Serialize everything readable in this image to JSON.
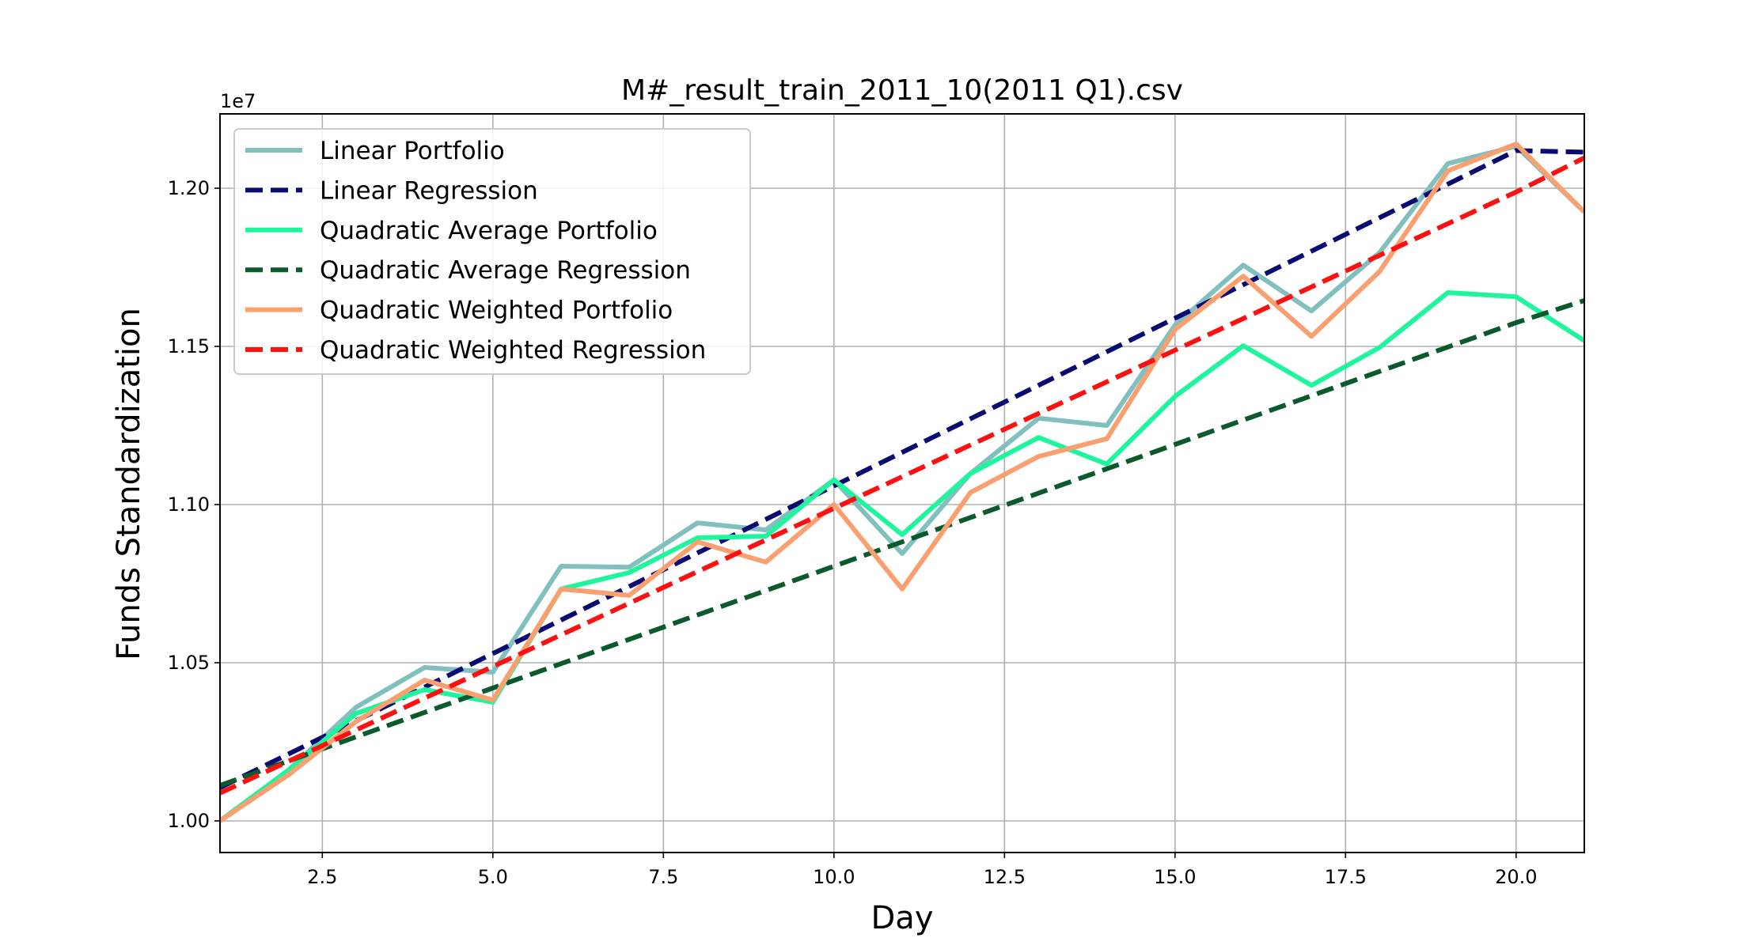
{
  "chart_data": {
    "type": "line",
    "title": "M#_result_train_2011_10(2011 Q1).csv",
    "xlabel": "Day",
    "ylabel": "Funds Standardization",
    "y_offset_label": "1e7",
    "xlim": [
      1,
      21
    ],
    "ylim": [
      0.99,
      1.2235
    ],
    "x_ticks": [
      2.5,
      5.0,
      7.5,
      10.0,
      12.5,
      15.0,
      17.5,
      20.0
    ],
    "x_tick_labels": [
      "2.5",
      "5.0",
      "7.5",
      "10.0",
      "12.5",
      "15.0",
      "17.5",
      "20.0"
    ],
    "y_ticks": [
      1.0,
      1.05,
      1.1,
      1.15,
      1.2
    ],
    "y_tick_labels": [
      "1.00",
      "1.05",
      "1.10",
      "1.15",
      "1.20"
    ],
    "grid": true,
    "legend_position": "upper-left",
    "x": [
      1,
      2,
      3,
      4,
      5,
      6,
      7,
      8,
      9,
      10,
      11,
      12,
      13,
      14,
      15,
      16,
      17,
      18,
      19,
      20,
      21
    ],
    "series": [
      {
        "name": "Linear Portfolio",
        "color": "#82bfbf",
        "style": "solid",
        "values": [
          1.0,
          1.016,
          1.036,
          1.0485,
          1.047,
          1.0805,
          1.0802,
          1.0942,
          1.092,
          1.1078,
          1.0845,
          1.1098,
          1.1273,
          1.125,
          1.1567,
          1.1757,
          1.1612,
          1.1797,
          1.2078,
          1.2133,
          1.1925
        ]
      },
      {
        "name": "Linear Regression",
        "color": "#0a0a73",
        "style": "dashed",
        "values": [
          1.0105,
          1.0211,
          1.0317,
          1.0423,
          1.0529,
          1.0635,
          1.0741,
          1.0847,
          1.0953,
          1.1059,
          1.1165,
          1.1271,
          1.1377,
          1.1483,
          1.1589,
          1.1695,
          1.1801,
          1.1907,
          1.2013,
          1.2119,
          1.2114
        ]
      },
      {
        "name": "Quadratic Average Portfolio",
        "color": "#1ff59c",
        "style": "solid",
        "values": [
          1.0,
          1.016,
          1.034,
          1.0415,
          1.0375,
          1.0733,
          1.0785,
          1.0895,
          1.09,
          1.1078,
          1.0905,
          1.1098,
          1.1212,
          1.1128,
          1.1342,
          1.1502,
          1.1377,
          1.1497,
          1.167,
          1.1657,
          1.1518
        ]
      },
      {
        "name": "Quadratic Average Regression",
        "color": "#0b5a2e",
        "style": "dashed",
        "values": [
          1.0112,
          1.0189,
          1.0266,
          1.0343,
          1.042,
          1.0497,
          1.0574,
          1.0651,
          1.0728,
          1.0805,
          1.0882,
          1.0959,
          1.1036,
          1.1113,
          1.119,
          1.1267,
          1.1344,
          1.1421,
          1.1498,
          1.1575,
          1.1645
        ]
      },
      {
        "name": "Quadratic Weighted Portfolio",
        "color": "#f99f70",
        "style": "solid",
        "values": [
          1.0,
          1.0145,
          1.0315,
          1.0445,
          1.0382,
          1.0733,
          1.0713,
          1.0882,
          1.0818,
          1.1,
          1.0733,
          1.1038,
          1.1152,
          1.1208,
          1.1553,
          1.1722,
          1.1532,
          1.1737,
          1.2055,
          1.214,
          1.1925
        ]
      },
      {
        "name": "Quadratic Weighted Regression",
        "color": "#ff1010",
        "style": "dashed",
        "values": [
          1.0088,
          1.0188,
          1.0288,
          1.0388,
          1.0488,
          1.0588,
          1.0688,
          1.0788,
          1.0888,
          1.0988,
          1.1088,
          1.1188,
          1.1288,
          1.1388,
          1.1488,
          1.1588,
          1.1688,
          1.1788,
          1.1888,
          1.1988,
          1.2096
        ]
      }
    ]
  }
}
